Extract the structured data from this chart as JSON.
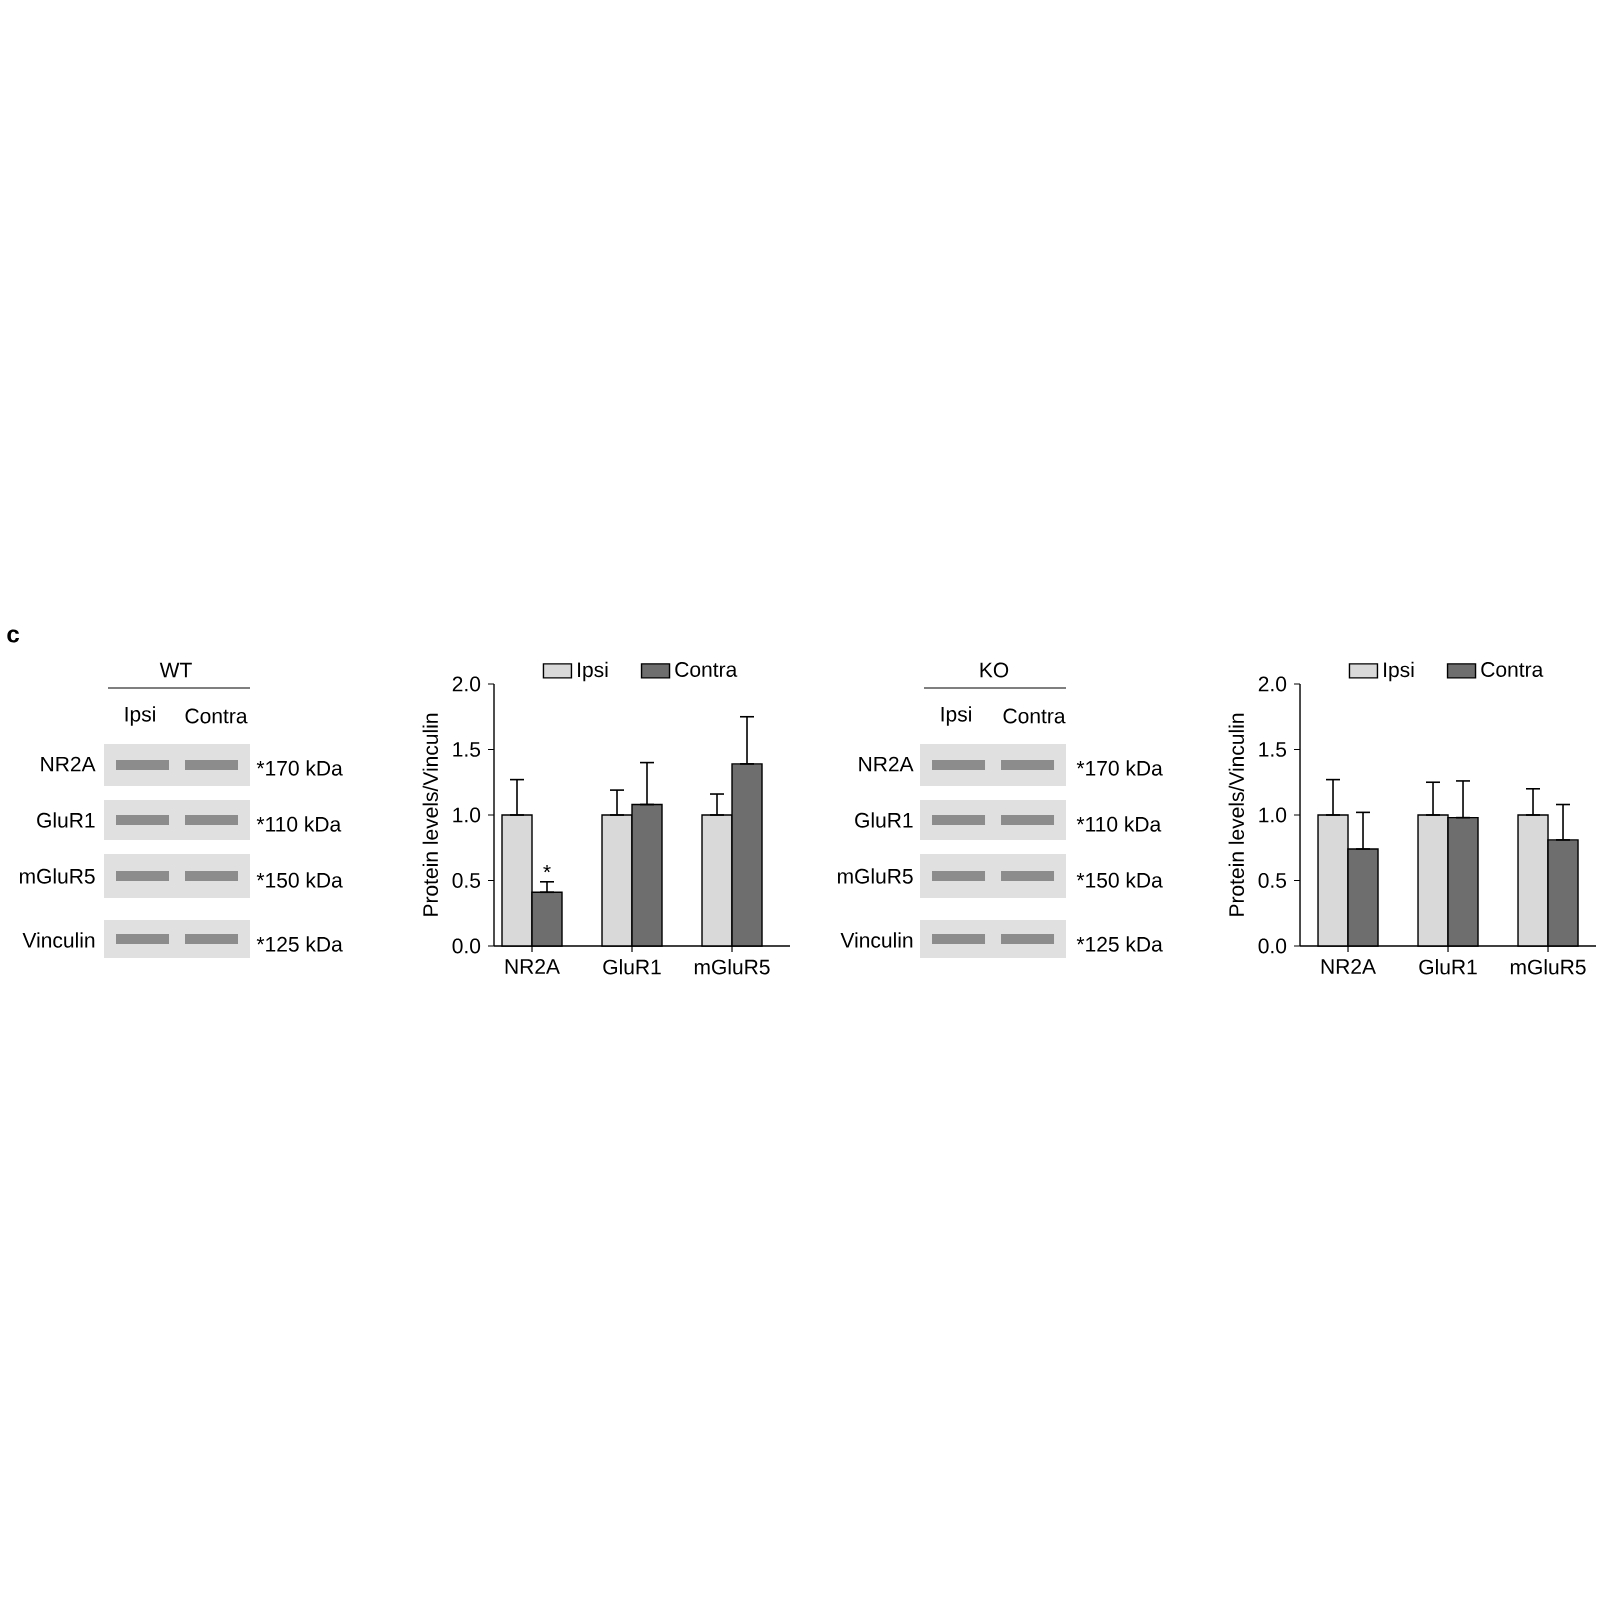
{
  "chart_data": [
    {
      "type": "bar",
      "ylabel": "Protein levels/Vinculin",
      "categories": [
        "NR2A",
        "GluR1",
        "mGluR5"
      ],
      "series": [
        {
          "name": "Ipsi",
          "color": "#d9d9d9",
          "values": [
            1.0,
            1.0,
            1.0
          ],
          "errors": [
            [
              1.0,
              1.27
            ],
            [
              1.0,
              1.19
            ],
            [
              1.0,
              1.16
            ]
          ]
        },
        {
          "name": "Contra",
          "color": "#6e6e6e",
          "values": [
            0.41,
            1.08,
            1.39
          ],
          "errors": [
            [
              0.41,
              0.49
            ],
            [
              1.08,
              1.4
            ],
            [
              1.39,
              1.75
            ]
          ]
        }
      ],
      "ylim": [
        0,
        2
      ],
      "yticks": [
        {
          "value": 0,
          "label": "0.0"
        },
        {
          "value": 0.5,
          "label": "0.5"
        },
        {
          "value": 1,
          "label": "1.0"
        },
        {
          "value": 1.5,
          "label": "1.5"
        },
        {
          "value": 2,
          "label": "2.0"
        }
      ],
      "legend": "top",
      "annotations": [
        "c",
        "WT",
        "Ipsi",
        "Contra",
        "NR2A",
        "GluR1",
        "mGluR5",
        "Vinculin",
        "*170 kDa",
        "*110 kDa",
        "*150 kDa",
        "*125 kDa",
        "*"
      ]
    },
    {
      "type": "bar",
      "ylabel": "Protein levels/Vinculin",
      "categories": [
        "NR2A",
        "GluR1",
        "mGluR5"
      ],
      "series": [
        {
          "name": "Ipsi",
          "color": "#d9d9d9",
          "values": [
            1.0,
            1.0,
            1.0
          ],
          "errors": [
            [
              1.0,
              1.27
            ],
            [
              1.0,
              1.25
            ],
            [
              1.0,
              1.2
            ]
          ]
        },
        {
          "name": "Contra",
          "color": "#6e6e6e",
          "values": [
            0.74,
            0.98,
            0.81
          ],
          "errors": [
            [
              0.74,
              1.02
            ],
            [
              0.98,
              1.26
            ],
            [
              0.81,
              1.08
            ]
          ]
        }
      ],
      "ylim": [
        0,
        2
      ],
      "yticks": [
        {
          "value": 0,
          "label": "0.0"
        },
        {
          "value": 0.5,
          "label": "0.5"
        },
        {
          "value": 1,
          "label": "1.0"
        },
        {
          "value": 1.5,
          "label": "1.5"
        },
        {
          "value": 2,
          "label": "2.0"
        }
      ],
      "legend": "top",
      "annotations": [
        "KO",
        "Ipsi",
        "Contra",
        "NR2A",
        "GluR1",
        "mGluR5",
        "Vinculin",
        "*170 kDa",
        "*110 kDa",
        "*150 kDa",
        "*125 kDa"
      ]
    }
  ]
}
